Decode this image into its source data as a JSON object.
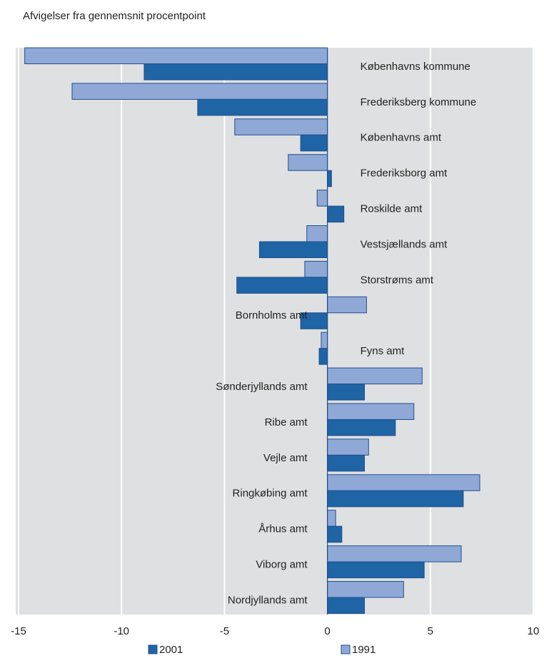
{
  "chart_data": {
    "type": "bar",
    "orientation": "horizontal",
    "title": "",
    "subtitle": "Afvigelser fra gennemsnit procentpoint",
    "xlabel": "",
    "ylabel": "",
    "xlim": [
      -15,
      10
    ],
    "xticks": [
      -15,
      -10,
      -5,
      0,
      5,
      10
    ],
    "grid": true,
    "legend": "bottom",
    "categories": [
      "Københavns kommune",
      "Frederiksberg kommune",
      "Københavns amt",
      "Frederiksborg amt",
      "Roskilde amt",
      "Vestsjællands amt",
      "Storstrøms amt",
      "Bornholms amt",
      "Fyns amt",
      "Sønderjyllands amt",
      "Ribe amt",
      "Vejle amt",
      "Ringkøbing amt",
      "Århus amt",
      "Viborg amt",
      "Nordjyllands amt"
    ],
    "series": [
      {
        "name": "1991",
        "color": "#8fa8d6",
        "values": [
          -14.7,
          -12.4,
          -4.5,
          -1.9,
          -0.5,
          -1.0,
          -1.1,
          1.9,
          -0.3,
          4.6,
          4.2,
          2.0,
          7.4,
          0.4,
          6.5,
          3.7
        ]
      },
      {
        "name": "2001",
        "color": "#1f64a4",
        "values": [
          -8.9,
          -6.3,
          -1.3,
          0.2,
          0.8,
          -3.3,
          -4.4,
          -1.3,
          -0.4,
          1.8,
          3.3,
          1.8,
          6.6,
          0.7,
          4.7,
          1.8
        ]
      }
    ],
    "colors": {
      "plot_background": "#dfe0e1",
      "grid": "#ffffff"
    }
  }
}
